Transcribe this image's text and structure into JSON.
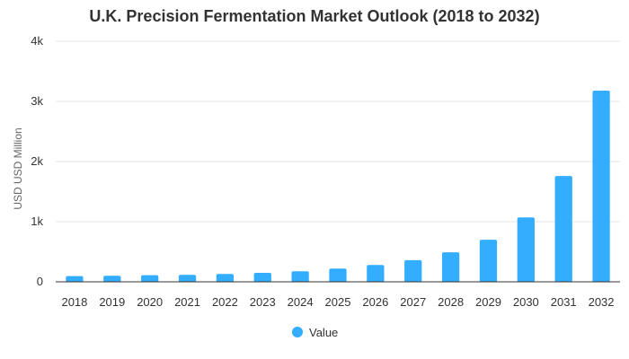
{
  "chart_data": {
    "type": "bar",
    "title": "U.K. Precision Fermentation Market Outlook (2018 to 2032)",
    "xlabel": "",
    "ylabel": "USD USD Million",
    "categories": [
      "2018",
      "2019",
      "2020",
      "2021",
      "2022",
      "2023",
      "2024",
      "2025",
      "2026",
      "2027",
      "2028",
      "2029",
      "2030",
      "2031",
      "2032"
    ],
    "series": [
      {
        "name": "Value",
        "values": [
          95,
          100,
          110,
          115,
          130,
          150,
          175,
          220,
          280,
          360,
          490,
          700,
          1070,
          1760,
          3180
        ]
      }
    ],
    "ylim": [
      0,
      4000
    ],
    "yticks": [
      {
        "value": 0,
        "label": "0"
      },
      {
        "value": 1000,
        "label": "1k"
      },
      {
        "value": 2000,
        "label": "2k"
      },
      {
        "value": 3000,
        "label": "3k"
      },
      {
        "value": 4000,
        "label": "4k"
      }
    ],
    "grid": true,
    "legend_position": "bottom",
    "colors": {
      "bar": "#33adff",
      "grid": "#e6e6e6",
      "axis": "#333333"
    }
  }
}
